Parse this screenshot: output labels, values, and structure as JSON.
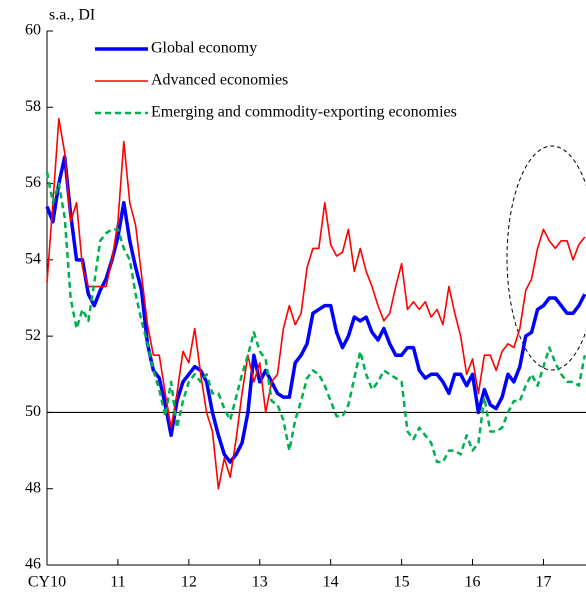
{
  "chart_data": {
    "type": "line",
    "y_axis_label": "s.a., DI",
    "xlim": [
      2010,
      2017.6
    ],
    "xticks": [
      {
        "value": 2010,
        "label": "CY10"
      },
      {
        "value": 2011,
        "label": "11"
      },
      {
        "value": 2012,
        "label": "12"
      },
      {
        "value": 2013,
        "label": "13"
      },
      {
        "value": 2014,
        "label": "14"
      },
      {
        "value": 2015,
        "label": "15"
      },
      {
        "value": 2016,
        "label": "16"
      },
      {
        "value": 2017,
        "label": "17"
      }
    ],
    "ylim": [
      46,
      60
    ],
    "yticks": [
      46,
      48,
      50,
      52,
      54,
      56,
      58,
      60
    ],
    "reference_line": 50,
    "grid": false,
    "legend": "upper left",
    "x": [
      2010,
      2010.083,
      2010.167,
      2010.25,
      2010.333,
      2010.417,
      2010.5,
      2010.583,
      2010.667,
      2010.75,
      2010.833,
      2010.917,
      2011,
      2011.083,
      2011.167,
      2011.25,
      2011.333,
      2011.417,
      2011.5,
      2011.583,
      2011.667,
      2011.75,
      2011.833,
      2011.917,
      2012,
      2012.083,
      2012.167,
      2012.25,
      2012.333,
      2012.417,
      2012.5,
      2012.583,
      2012.667,
      2012.75,
      2012.833,
      2012.917,
      2013,
      2013.083,
      2013.167,
      2013.25,
      2013.333,
      2013.417,
      2013.5,
      2013.583,
      2013.667,
      2013.75,
      2013.833,
      2013.917,
      2014,
      2014.083,
      2014.167,
      2014.25,
      2014.333,
      2014.417,
      2014.5,
      2014.583,
      2014.667,
      2014.75,
      2014.833,
      2014.917,
      2015,
      2015.083,
      2015.167,
      2015.25,
      2015.333,
      2015.417,
      2015.5,
      2015.583,
      2015.667,
      2015.75,
      2015.833,
      2015.917,
      2016,
      2016.083,
      2016.167,
      2016.25,
      2016.333,
      2016.417,
      2016.5,
      2016.583,
      2016.667,
      2016.75,
      2016.833,
      2016.917,
      2017,
      2017.083,
      2017.167,
      2017.25,
      2017.333,
      2017.417,
      2017.5,
      2017.583
    ],
    "series": [
      {
        "name": "Global economy",
        "color": "#0000ff",
        "width": 3.5,
        "dash": false,
        "values": [
          55.4,
          55.0,
          56.0,
          56.7,
          55.2,
          54.0,
          54.0,
          53.1,
          52.8,
          53.2,
          53.5,
          54.0,
          54.6,
          55.5,
          54.5,
          53.8,
          53.2,
          51.8,
          51.1,
          50.9,
          50.2,
          49.4,
          50.3,
          50.8,
          51.0,
          51.2,
          51.1,
          50.8,
          50.0,
          49.4,
          48.9,
          48.7,
          48.9,
          49.2,
          50.0,
          51.5,
          50.8,
          51.1,
          50.8,
          50.5,
          50.4,
          50.4,
          51.3,
          51.5,
          51.8,
          52.6,
          52.7,
          52.8,
          52.8,
          52.1,
          51.7,
          52.0,
          52.5,
          52.4,
          52.5,
          52.1,
          51.9,
          52.2,
          51.8,
          51.5,
          51.5,
          51.7,
          51.7,
          51.1,
          50.9,
          51.0,
          51.0,
          50.8,
          50.5,
          51.0,
          51.0,
          50.7,
          51.0,
          50.0,
          50.6,
          50.2,
          50.1,
          50.4,
          51.0,
          50.8,
          51.2,
          52.0,
          52.1,
          52.7,
          52.8,
          53.0,
          53.0,
          52.8,
          52.6,
          52.6,
          52.8,
          53.1
        ]
      },
      {
        "name": "Advanced economies",
        "color": "#ff0000",
        "width": 1.6,
        "dash": false,
        "values": [
          53.4,
          55.5,
          57.7,
          56.8,
          55.0,
          55.5,
          53.8,
          53.3,
          53.3,
          53.3,
          53.3,
          54.0,
          55.0,
          57.1,
          55.5,
          54.9,
          53.6,
          52.3,
          51.5,
          51.5,
          50.5,
          49.6,
          50.5,
          51.6,
          51.3,
          52.2,
          51.0,
          50.0,
          49.5,
          48.0,
          48.8,
          48.3,
          49.3,
          50.5,
          51.5,
          50.8,
          51.3,
          50.0,
          50.8,
          51.0,
          52.2,
          52.8,
          52.3,
          52.6,
          53.8,
          54.3,
          54.3,
          55.5,
          54.4,
          54.1,
          54.2,
          54.8,
          53.7,
          54.3,
          53.7,
          53.3,
          52.8,
          52.4,
          52.6,
          53.3,
          53.9,
          52.7,
          52.9,
          52.7,
          52.9,
          52.5,
          52.7,
          52.3,
          53.3,
          52.6,
          52.0,
          51.0,
          51.4,
          50.5,
          51.5,
          51.5,
          51.1,
          51.6,
          51.8,
          51.7,
          52.2,
          53.2,
          53.5,
          54.3,
          54.8,
          54.5,
          54.3,
          54.5,
          54.5,
          54.0,
          54.4,
          54.6
        ]
      },
      {
        "name": "Emerging and commodity-exporting economies",
        "color": "#00b050",
        "width": 2.5,
        "dash": true,
        "values": [
          56.3,
          55.5,
          56.0,
          55.1,
          53.0,
          52.2,
          52.7,
          52.4,
          53.4,
          54.5,
          54.7,
          54.8,
          54.8,
          54.3,
          54.0,
          53.1,
          52.4,
          51.8,
          51.1,
          50.6,
          49.9,
          50.8,
          49.6,
          50.3,
          50.8,
          51.0,
          50.8,
          51.0,
          50.5,
          50.5,
          50.1,
          49.8,
          50.4,
          51.0,
          51.5,
          52.1,
          51.6,
          51.4,
          50.3,
          50.2,
          49.8,
          49.0,
          49.8,
          50.3,
          50.9,
          51.1,
          51.0,
          50.7,
          50.3,
          49.9,
          49.9,
          50.2,
          50.9,
          51.6,
          51.0,
          50.6,
          50.8,
          51.1,
          51.0,
          50.9,
          50.8,
          49.5,
          49.3,
          49.6,
          49.4,
          49.2,
          48.7,
          48.7,
          49.0,
          49.0,
          48.9,
          49.4,
          49.0,
          49.2,
          50.4,
          49.5,
          49.5,
          49.6,
          50.0,
          50.3,
          50.3,
          50.7,
          51.0,
          50.7,
          51.2,
          51.7,
          51.3,
          51.0,
          50.8,
          50.8,
          50.7,
          51.5
        ]
      }
    ]
  }
}
